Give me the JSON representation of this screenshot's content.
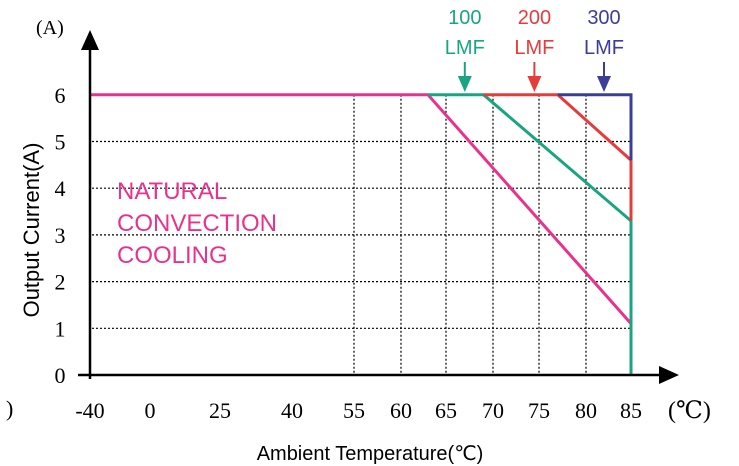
{
  "chart_data": {
    "type": "line",
    "title": "",
    "xlabel": "Ambient Temperature(℃)",
    "ylabel": "Output Current(A)",
    "x_unit": "(℃)",
    "y_unit": "(A)",
    "x_ticks": [
      "-40",
      "0",
      "25",
      "40",
      "55",
      "60",
      "65",
      "70",
      "75",
      "80",
      "85"
    ],
    "y_ticks": [
      "0",
      "1",
      "2",
      "3",
      "4",
      "5",
      "6"
    ],
    "ylim": [
      0,
      7
    ],
    "grid": "dotted",
    "series": [
      {
        "name": "NATURAL CONVECTION COOLING",
        "color": "#e8338e",
        "points": [
          [
            "-40",
            6
          ],
          [
            "63",
            6
          ],
          [
            "85",
            1.1
          ],
          [
            "85",
            0
          ]
        ]
      },
      {
        "name": "100 LMF",
        "color": "#1aa582",
        "points": [
          [
            "63",
            6
          ],
          [
            "69",
            6
          ],
          [
            "85",
            3.3
          ],
          [
            "85",
            0
          ]
        ]
      },
      {
        "name": "200 LMF",
        "color": "#e73b3b",
        "points": [
          [
            "69",
            6
          ],
          [
            "77",
            6
          ],
          [
            "85",
            4.6
          ],
          [
            "85",
            3.3
          ]
        ]
      },
      {
        "name": "300 LMF",
        "color": "#3a3e98",
        "points": [
          [
            "77",
            6
          ],
          [
            "85",
            6
          ],
          [
            "85",
            4.6
          ]
        ]
      }
    ],
    "annotations": [
      {
        "line1": "100",
        "line2": "LMF",
        "color": "#1aa582",
        "x": "67"
      },
      {
        "line1": "200",
        "line2": "LMF",
        "color": "#e73b3b",
        "x": "74.5"
      },
      {
        "line1": "300",
        "line2": "LMF",
        "color": "#3a3e98",
        "x": "82"
      }
    ],
    "region_label": [
      "NATURAL",
      "CONVECTION",
      "COOLING"
    ],
    "region_label_color": "#e8338e",
    "stray_mark": ")"
  }
}
